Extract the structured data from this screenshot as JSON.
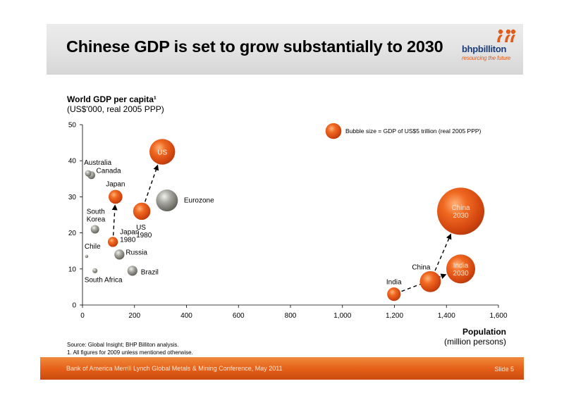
{
  "slide": {
    "title": "Chinese GDP is set to grow substantially to 2030",
    "logo_word": "bhpbilliton",
    "logo_tagline": "resourcing the future",
    "source": "Source:  Global Insight; BHP Billiton analysis.",
    "footnote": "1.  All figures for 2009 unless mentioned otherwise.",
    "footer_left": "Bank of America Merrill Lynch Global Metals & Mining Conference, May 2011",
    "footer_right": "Slide 5"
  },
  "colors": {
    "orange_bubble": "#e2541a",
    "gray_bubble": "#8e8e86",
    "footer": "#e45e16",
    "logo_blue": "#1b3c78"
  },
  "chart_data": {
    "type": "scatter",
    "subtype": "bubble",
    "title": "Chinese GDP is set to grow substantially to 2030",
    "ylabel_line1": "World GDP per capita¹",
    "ylabel_line2": "(US$'000, real 2005 PPP)",
    "xlabel_line1": "Population",
    "xlabel_line2": "(million persons)",
    "xlim": [
      0,
      1600
    ],
    "ylim": [
      0,
      50
    ],
    "xticks": [
      0,
      200,
      400,
      600,
      800,
      1000,
      1200,
      1400,
      1600
    ],
    "xtick_labels": [
      "0",
      "200",
      "400",
      "600",
      "800",
      "1,000",
      "1,200",
      "1,400",
      "1,600"
    ],
    "yticks": [
      0,
      10,
      20,
      30,
      40,
      50
    ],
    "ytick_labels": [
      "0",
      "10",
      "20",
      "30",
      "40",
      "50"
    ],
    "grid": false,
    "legend": {
      "position": "top-right",
      "text": "Bubble size = GDP of US$5 trillion (real 2005 PPP)",
      "size": 5
    },
    "series": [
      {
        "name": "US",
        "x": 307,
        "y": 42.5,
        "size": 13.0,
        "color": "orange",
        "label": "US",
        "label_inside": true
      },
      {
        "name": "US 1980",
        "x": 228,
        "y": 26,
        "size": 5.9,
        "color": "orange",
        "label": "US\n1980",
        "label_inside": false
      },
      {
        "name": "Eurozone",
        "x": 325,
        "y": 29,
        "size": 9.4,
        "color": "gray",
        "label": "Eurozone",
        "label_inside": false
      },
      {
        "name": "Japan",
        "x": 127,
        "y": 30,
        "size": 3.8,
        "color": "orange",
        "label": "Japan",
        "label_inside": false
      },
      {
        "name": "Japan 1980",
        "x": 117,
        "y": 17.5,
        "size": 2.0,
        "color": "orange",
        "label": "Japan\n1980",
        "label_inside": false
      },
      {
        "name": "Australia",
        "x": 22,
        "y": 36.5,
        "size": 0.8,
        "color": "gray",
        "label": "Australia",
        "label_inside": false
      },
      {
        "name": "Canada",
        "x": 34,
        "y": 36,
        "size": 1.2,
        "color": "gray",
        "label": "Canada",
        "label_inside": false
      },
      {
        "name": "South Korea",
        "x": 48,
        "y": 21,
        "size": 1.4,
        "color": "gray",
        "label": "South\nKorea",
        "label_inside": false
      },
      {
        "name": "Russia",
        "x": 142,
        "y": 14,
        "size": 2.0,
        "color": "gray",
        "label": "Russia",
        "label_inside": false
      },
      {
        "name": "Chile",
        "x": 16,
        "y": 13.5,
        "size": 0.2,
        "color": "gray",
        "label": "Chile",
        "label_inside": false
      },
      {
        "name": "South Africa",
        "x": 48,
        "y": 9.5,
        "size": 0.5,
        "color": "gray",
        "label": "South Africa",
        "label_inside": false
      },
      {
        "name": "Brazil",
        "x": 192,
        "y": 9.5,
        "size": 2.0,
        "color": "gray",
        "label": "Brazil",
        "label_inside": false
      },
      {
        "name": "India",
        "x": 1198,
        "y": 3,
        "size": 3.6,
        "color": "orange",
        "label": "India",
        "label_inside": false
      },
      {
        "name": "China",
        "x": 1338,
        "y": 6.5,
        "size": 8.7,
        "color": "orange",
        "label": "China",
        "label_inside": false
      },
      {
        "name": "China 2030",
        "x": 1455,
        "y": 26,
        "size": 44,
        "color": "orange",
        "label": "China\n2030",
        "label_inside": true
      },
      {
        "name": "India 2030",
        "x": 1455,
        "y": 10,
        "size": 16.5,
        "color": "orange",
        "label": "India\n2030",
        "label_inside": true
      }
    ],
    "arrows": [
      {
        "from": "US 1980",
        "to": "US"
      },
      {
        "from": "Japan 1980",
        "to": "Japan"
      },
      {
        "from": "China",
        "to": "China 2030"
      },
      {
        "from": "India",
        "to": "India 2030"
      }
    ]
  }
}
